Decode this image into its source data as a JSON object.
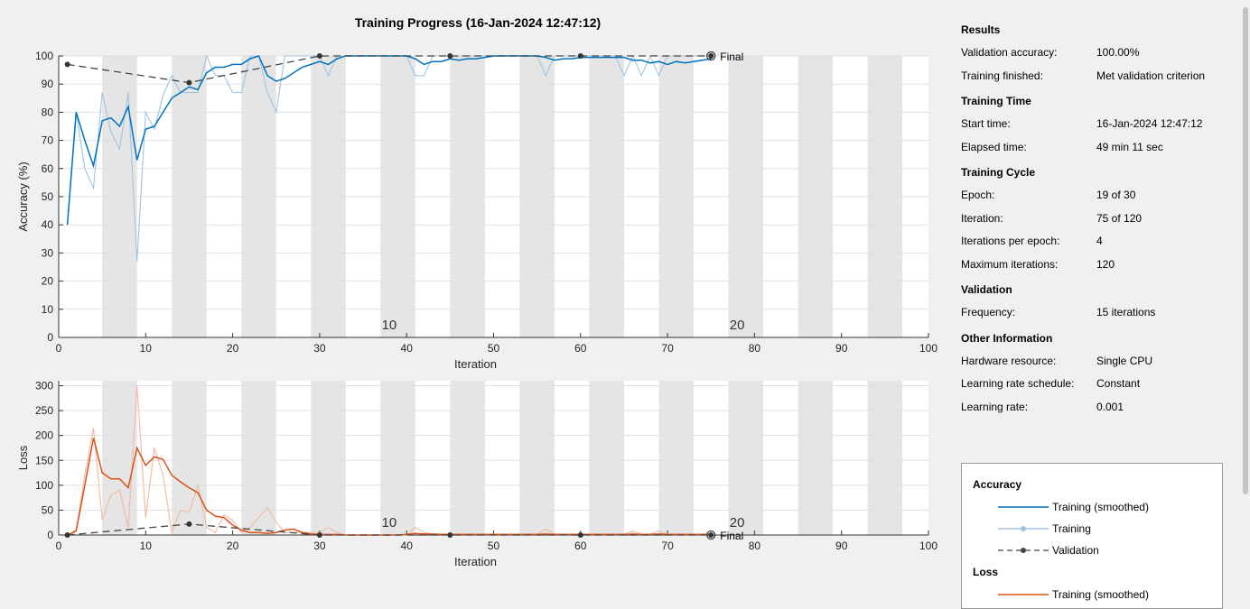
{
  "title": "Training Progress (16-Jan-2024 12:47:12)",
  "chart_data": [
    {
      "type": "line",
      "name": "accuracy",
      "xlabel": "Iteration",
      "ylabel": "Accuracy (%)",
      "xlim": [
        0,
        100
      ],
      "ylim": [
        0,
        100
      ],
      "xticks": [
        0,
        10,
        20,
        30,
        40,
        50,
        60,
        70,
        80,
        90,
        100
      ],
      "yticks": [
        0,
        10,
        20,
        30,
        40,
        50,
        60,
        70,
        80,
        90,
        100
      ],
      "grid": true,
      "epoch_labels": [
        {
          "x": 38,
          "text": "10"
        },
        {
          "x": 78,
          "text": "20"
        }
      ],
      "final_label": "Final",
      "series": [
        {
          "name": "Training (smoothed)",
          "color": "#0072bd",
          "x": [
            1,
            2,
            3,
            4,
            5,
            6,
            7,
            8,
            9,
            10,
            11,
            12,
            13,
            14,
            15,
            16,
            17,
            18,
            19,
            20,
            21,
            22,
            23,
            24,
            25,
            26,
            27,
            28,
            29,
            30,
            31,
            32,
            33,
            34,
            35,
            36,
            37,
            38,
            39,
            40,
            41,
            42,
            43,
            44,
            45,
            46,
            47,
            48,
            49,
            50,
            51,
            52,
            53,
            54,
            55,
            56,
            57,
            58,
            59,
            60,
            61,
            62,
            63,
            64,
            65,
            66,
            67,
            68,
            69,
            70,
            71,
            72,
            73,
            74,
            75
          ],
          "y": [
            40,
            80,
            70,
            61,
            77,
            78,
            75,
            82,
            63,
            74,
            75,
            80,
            85,
            87,
            89,
            88,
            94,
            96,
            96,
            97,
            97,
            99,
            100,
            93,
            91,
            92,
            94,
            96,
            97,
            98,
            97,
            99,
            100,
            100,
            100,
            100,
            100,
            100,
            100,
            100,
            99,
            97,
            98,
            98,
            99,
            98.5,
            99,
            99,
            99.5,
            100,
            100,
            100,
            100,
            100,
            100,
            99.5,
            98.5,
            99,
            99,
            99.5,
            99.5,
            99.5,
            99.5,
            99.5,
            99.5,
            98.5,
            98.5,
            97.5,
            98,
            97,
            98,
            97.5,
            98,
            98.5,
            99
          ]
        },
        {
          "name": "Training",
          "color": "#9fc4e0",
          "x": [
            1,
            2,
            3,
            4,
            5,
            6,
            7,
            8,
            9,
            10,
            11,
            12,
            13,
            14,
            15,
            16,
            17,
            18,
            19,
            20,
            21,
            22,
            23,
            24,
            25,
            26,
            27,
            28,
            29,
            30,
            31,
            32,
            33,
            34,
            35,
            36,
            37,
            38,
            39,
            40,
            41,
            42,
            43,
            44,
            45,
            46,
            47,
            48,
            49,
            50,
            51,
            52,
            53,
            54,
            55,
            56,
            57,
            58,
            59,
            60,
            61,
            62,
            63,
            64,
            65,
            66,
            67,
            68,
            69,
            70,
            71,
            72,
            73,
            74,
            75
          ],
          "y": [
            40,
            80,
            60,
            53,
            87,
            73,
            67,
            87,
            27,
            80,
            74,
            86,
            93,
            87,
            87,
            87,
            100,
            93,
            93,
            87,
            87,
            100,
            100,
            87,
            80,
            100,
            100,
            100,
            100,
            100,
            93,
            100,
            100,
            100,
            100,
            100,
            100,
            100,
            100,
            100,
            93,
            93,
            100,
            100,
            100,
            100,
            100,
            100,
            100,
            100,
            100,
            100,
            100,
            100,
            100,
            93,
            100,
            100,
            100,
            100,
            100,
            100,
            100,
            100,
            93,
            100,
            93,
            100,
            93,
            100,
            100,
            100,
            100,
            100,
            100
          ]
        },
        {
          "name": "Validation",
          "color": "#444444",
          "x": [
            1,
            15,
            30,
            45,
            60,
            75
          ],
          "y": [
            97,
            90.5,
            100,
            100,
            100,
            100
          ]
        }
      ]
    },
    {
      "type": "line",
      "name": "loss",
      "xlabel": "Iteration",
      "ylabel": "Loss",
      "xlim": [
        0,
        100
      ],
      "ylim": [
        0,
        310
      ],
      "xticks": [
        0,
        10,
        20,
        30,
        40,
        50,
        60,
        70,
        80,
        90,
        100
      ],
      "yticks": [
        0,
        50,
        100,
        150,
        200,
        250,
        300
      ],
      "grid": true,
      "epoch_labels": [
        {
          "x": 38,
          "text": "10"
        },
        {
          "x": 78,
          "text": "20"
        }
      ],
      "final_label": "Final",
      "series": [
        {
          "name": "Training (smoothed)",
          "color": "#d95319",
          "x": [
            1,
            2,
            3,
            4,
            5,
            6,
            7,
            8,
            9,
            10,
            11,
            12,
            13,
            14,
            15,
            16,
            17,
            18,
            19,
            20,
            21,
            22,
            23,
            24,
            25,
            26,
            27,
            28,
            29,
            30,
            31,
            32,
            33,
            34,
            35,
            36,
            37,
            38,
            39,
            40,
            41,
            42,
            43,
            44,
            45,
            46,
            47,
            48,
            49,
            50,
            51,
            52,
            53,
            54,
            55,
            56,
            57,
            58,
            59,
            60,
            61,
            62,
            63,
            64,
            65,
            66,
            67,
            68,
            69,
            70,
            71,
            72,
            73,
            74,
            75
          ],
          "y": [
            0,
            8,
            100,
            195,
            125,
            113,
            113,
            95,
            175,
            140,
            157,
            152,
            120,
            107,
            95,
            85,
            50,
            38,
            35,
            20,
            10,
            5,
            5,
            3,
            5,
            10,
            12,
            5,
            2,
            1,
            1,
            1,
            0,
            0,
            0,
            0,
            0,
            0,
            0,
            1,
            3,
            2,
            2,
            1,
            1,
            1,
            1,
            1,
            1,
            1,
            1,
            1,
            1,
            1,
            1,
            2,
            1,
            1,
            1,
            1,
            1,
            1,
            1,
            1,
            1,
            2,
            1,
            1,
            2,
            1,
            1,
            1,
            1,
            1,
            1
          ]
        },
        {
          "name": "Training",
          "color": "#f2b8a0",
          "x": [
            1,
            2,
            3,
            4,
            5,
            6,
            7,
            8,
            9,
            10,
            11,
            12,
            13,
            14,
            15,
            16,
            17,
            18,
            19,
            20,
            21,
            22,
            23,
            24,
            25,
            26,
            27,
            28,
            29,
            30,
            31,
            32,
            33,
            34,
            35,
            36,
            37,
            38,
            39,
            40,
            41,
            42,
            43,
            44,
            45,
            46,
            47,
            48,
            49,
            50,
            51,
            52,
            53,
            54,
            55,
            56,
            57,
            58,
            59,
            60,
            61,
            62,
            63,
            64,
            65,
            66,
            67,
            68,
            69,
            70,
            71,
            72,
            73,
            74,
            75
          ],
          "y": [
            0,
            10,
            120,
            215,
            30,
            80,
            90,
            15,
            300,
            35,
            175,
            120,
            5,
            50,
            45,
            100,
            15,
            5,
            40,
            30,
            5,
            15,
            35,
            55,
            25,
            5,
            5,
            5,
            5,
            5,
            15,
            5,
            0,
            0,
            0,
            0,
            0,
            0,
            0,
            0,
            15,
            5,
            2,
            2,
            2,
            2,
            2,
            2,
            2,
            2,
            2,
            2,
            2,
            2,
            2,
            12,
            2,
            2,
            2,
            2,
            2,
            2,
            2,
            2,
            2,
            8,
            2,
            2,
            8,
            2,
            2,
            2,
            2,
            2,
            2
          ]
        },
        {
          "name": "Validation",
          "color": "#444444",
          "x": [
            1,
            15,
            30,
            45,
            60,
            75
          ],
          "y": [
            0,
            22,
            0,
            0,
            0,
            0
          ]
        }
      ]
    }
  ],
  "info": {
    "results": {
      "title": "Results",
      "rows": [
        {
          "k": "Validation accuracy:",
          "v": "100.00%"
        },
        {
          "k": "Training finished:",
          "v": "Met validation criterion"
        }
      ]
    },
    "time": {
      "title": "Training Time",
      "rows": [
        {
          "k": "Start time:",
          "v": "16-Jan-2024 12:47:12"
        },
        {
          "k": "Elapsed time:",
          "v": "49 min 11 sec"
        }
      ]
    },
    "cycle": {
      "title": "Training Cycle",
      "rows": [
        {
          "k": "Epoch:",
          "v": "19 of 30"
        },
        {
          "k": "Iteration:",
          "v": "75 of 120"
        },
        {
          "k": "Iterations per epoch:",
          "v": "4"
        },
        {
          "k": "Maximum iterations:",
          "v": "120"
        }
      ]
    },
    "validation": {
      "title": "Validation",
      "rows": [
        {
          "k": "Frequency:",
          "v": "15 iterations"
        }
      ]
    },
    "other": {
      "title": "Other Information",
      "rows": [
        {
          "k": "Hardware resource:",
          "v": "Single CPU"
        },
        {
          "k": "Learning rate schedule:",
          "v": "Constant"
        },
        {
          "k": "Learning rate:",
          "v": "0.001"
        }
      ]
    }
  },
  "legend": {
    "accuracy_title": "Accuracy",
    "loss_title": "Loss",
    "items": [
      "Training (smoothed)",
      "Training",
      "Validation"
    ],
    "loss_item_partial": "Training (smoothed)"
  }
}
